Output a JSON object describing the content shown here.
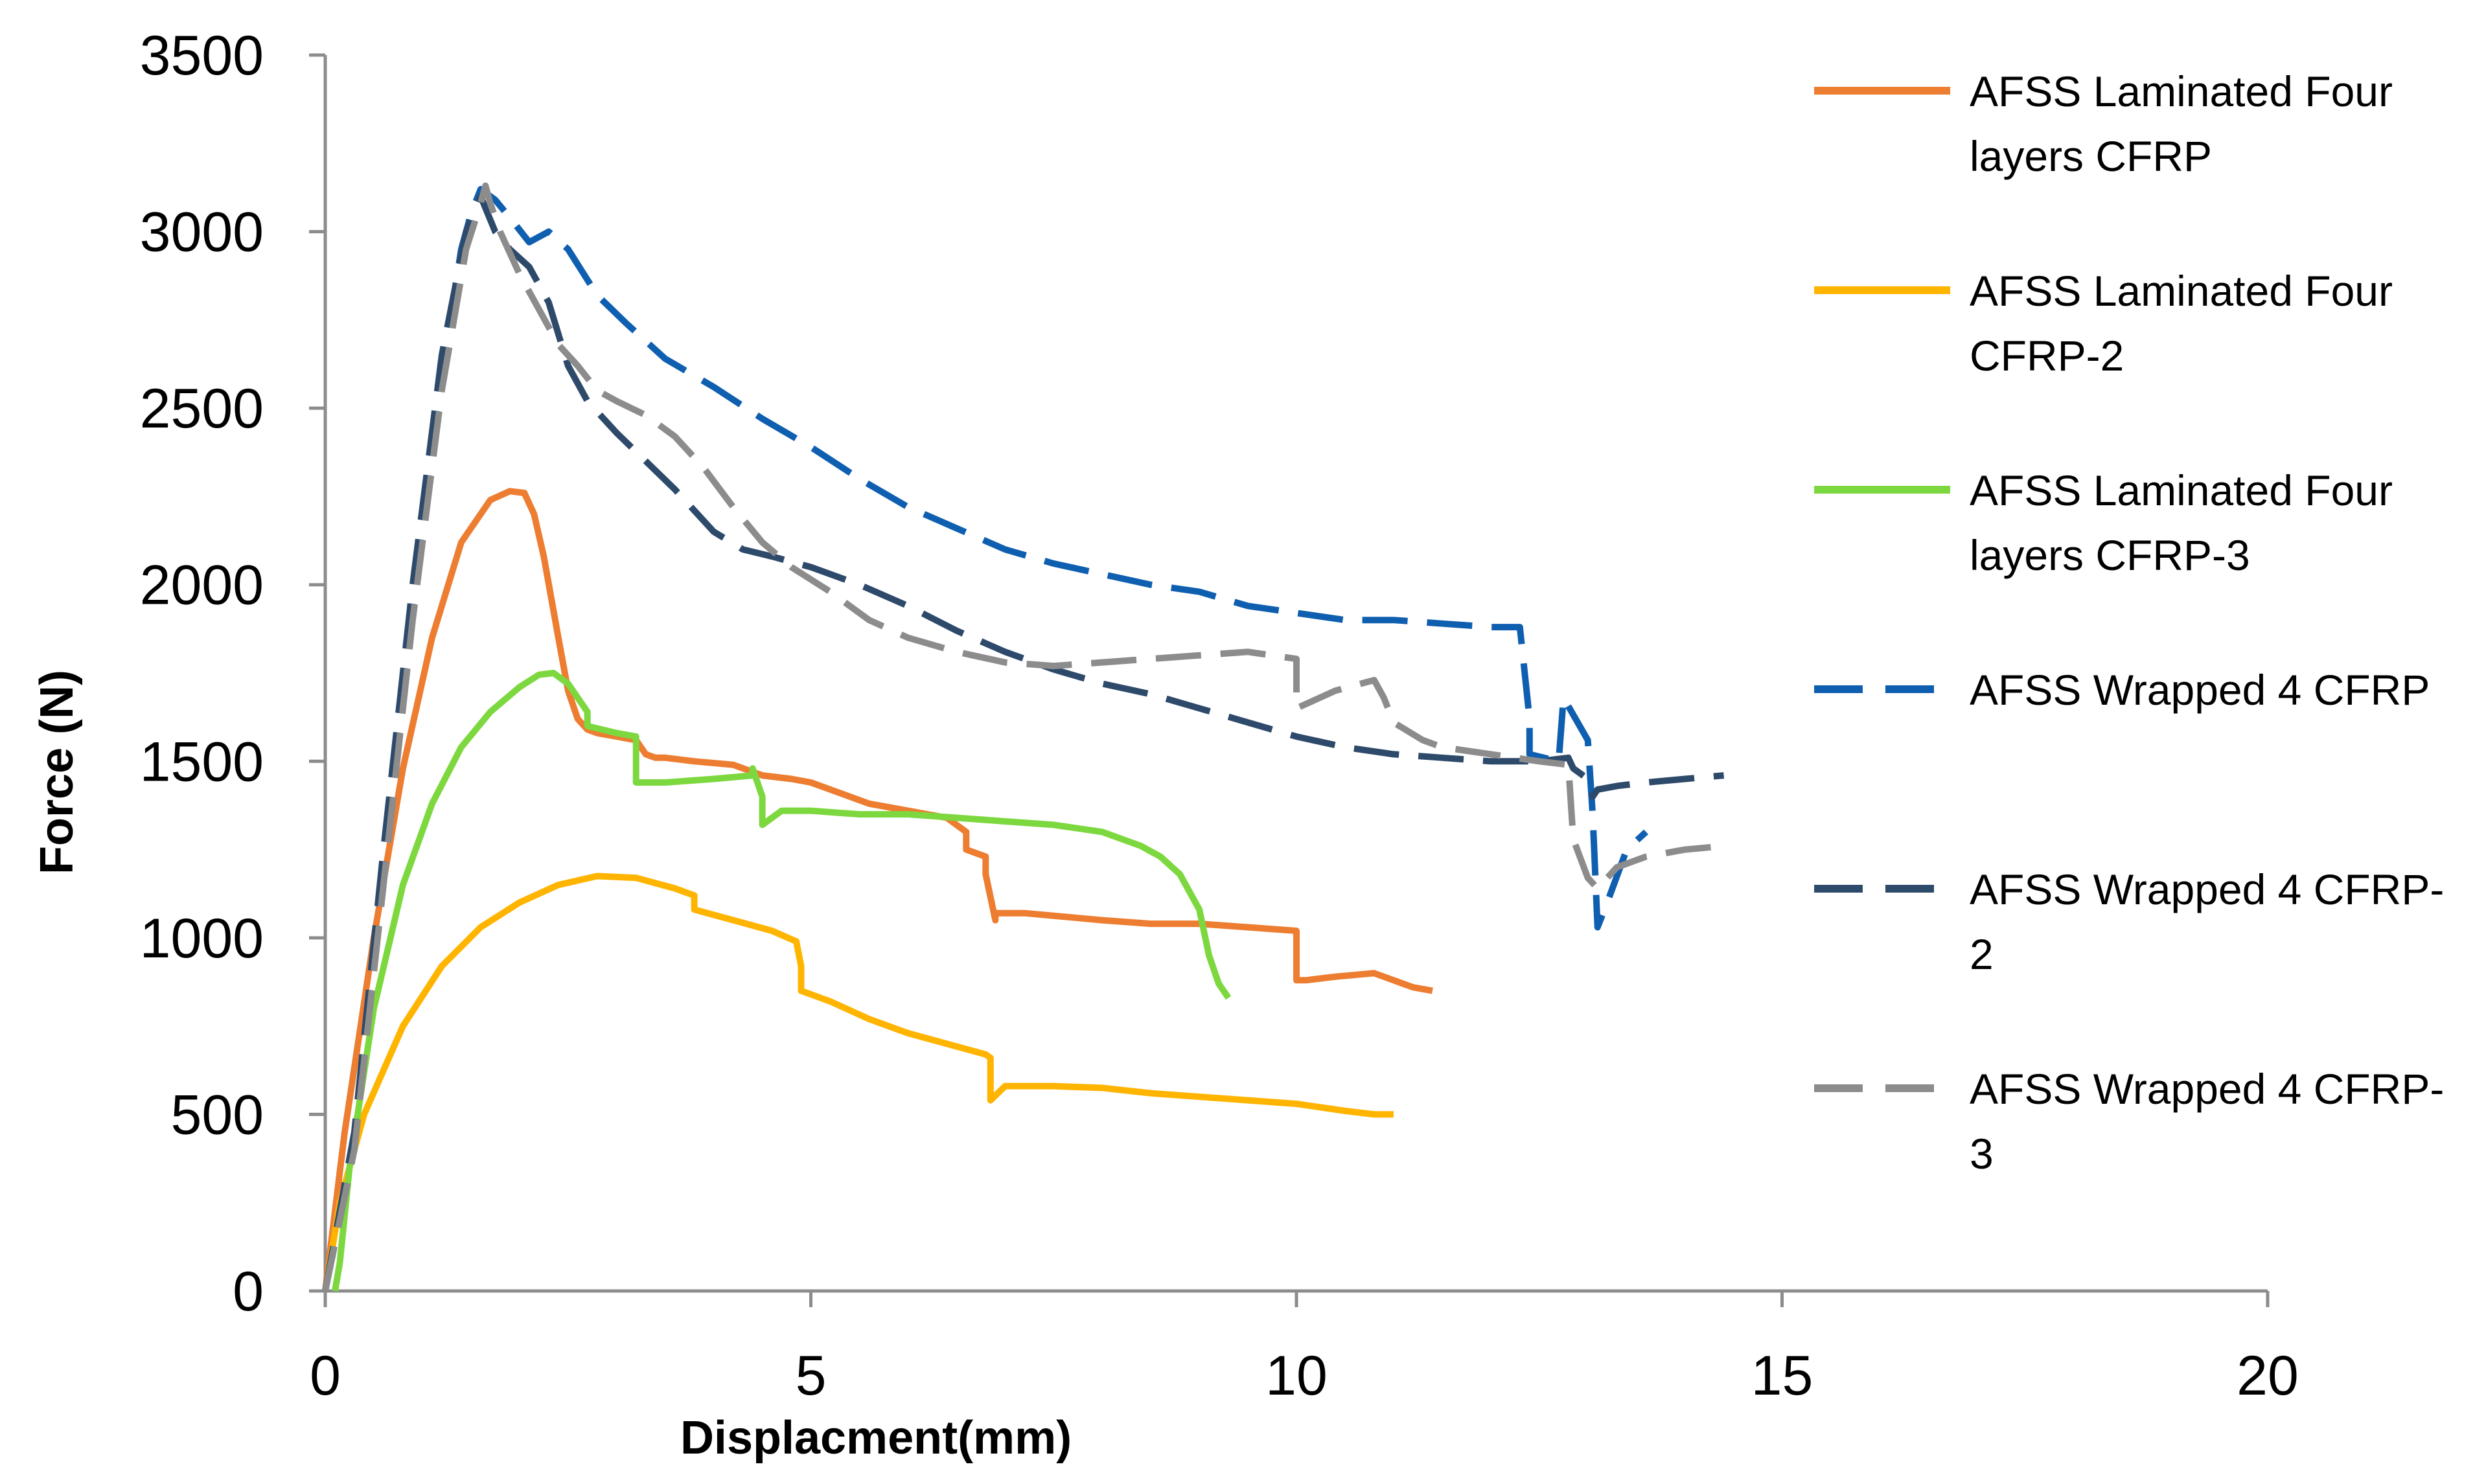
{
  "chart_data": {
    "type": "line",
    "title": "",
    "xlabel": "Displacment(mm)",
    "ylabel": "Force (N)",
    "xlim": [
      0,
      20
    ],
    "ylim": [
      0,
      3500
    ],
    "xticks": [
      0,
      5,
      10,
      15,
      20
    ],
    "yticks": [
      0,
      500,
      1000,
      1500,
      2000,
      2500,
      3000,
      3500
    ],
    "grid": false,
    "legend_position": "right",
    "series": [
      {
        "name": "AFSS Laminated Four layers CFRP",
        "legend_lines": [
          "AFSS Laminated Four",
          "layers CFRP"
        ],
        "color": "#ED7D31",
        "dash": "solid",
        "x": [
          0,
          0.2,
          0.5,
          0.8,
          1.1,
          1.4,
          1.7,
          1.9,
          2.05,
          2.15,
          2.25,
          2.4,
          2.5,
          2.6,
          2.7,
          2.8,
          3.0,
          3.2,
          3.3,
          3.4,
          3.5,
          3.8,
          4.2,
          4.5,
          4.8,
          5.0,
          5.3,
          5.6,
          6.0,
          6.4,
          6.6,
          6.6,
          6.8,
          6.8,
          6.9,
          6.9,
          7.2,
          7.6,
          8.0,
          8.5,
          9.0,
          9.5,
          10.0,
          10.0,
          10.1,
          10.4,
          10.8,
          11.0,
          11.2,
          11.4
        ],
        "y": [
          0,
          450,
          1000,
          1480,
          1850,
          2120,
          2240,
          2265,
          2260,
          2200,
          2080,
          1850,
          1700,
          1620,
          1590,
          1580,
          1570,
          1560,
          1520,
          1510,
          1510,
          1500,
          1490,
          1460,
          1450,
          1440,
          1410,
          1380,
          1360,
          1340,
          1300,
          1250,
          1230,
          1180,
          1050,
          1070,
          1070,
          1060,
          1050,
          1040,
          1040,
          1030,
          1020,
          880,
          880,
          890,
          900,
          880,
          860,
          850
        ]
      },
      {
        "name": "AFSS Laminated Four CFRP-2",
        "legend_lines": [
          "AFSS Laminated Four",
          "CFRP-2"
        ],
        "color": "#FFB400",
        "dash": "solid",
        "x": [
          0,
          0.15,
          0.4,
          0.8,
          1.2,
          1.6,
          2.0,
          2.4,
          2.8,
          3.2,
          3.6,
          3.8,
          3.8,
          4.2,
          4.6,
          4.85,
          4.9,
          4.9,
          5.2,
          5.6,
          6.0,
          6.4,
          6.8,
          6.85,
          6.85,
          7.0,
          7.5,
          8.0,
          8.5,
          9.0,
          9.5,
          10.0,
          10.5,
          10.8,
          11.0
        ],
        "y": [
          0,
          250,
          500,
          750,
          920,
          1030,
          1100,
          1150,
          1175,
          1170,
          1140,
          1120,
          1080,
          1050,
          1020,
          990,
          920,
          850,
          820,
          770,
          730,
          700,
          670,
          660,
          540,
          580,
          580,
          575,
          560,
          550,
          540,
          530,
          510,
          500,
          500
        ]
      },
      {
        "name": "AFSS Laminated Four layers CFRP-3",
        "legend_lines": [
          "AFSS Laminated Four",
          "layers CFRP-3"
        ],
        "color": "#7DD83F",
        "dash": "solid",
        "x": [
          0.1,
          0.15,
          0.25,
          0.5,
          0.8,
          1.1,
          1.4,
          1.7,
          2.0,
          2.2,
          2.35,
          2.5,
          2.6,
          2.7,
          2.7,
          3.0,
          3.2,
          3.2,
          3.5,
          4.0,
          4.4,
          4.4,
          4.5,
          4.5,
          4.7,
          5.0,
          5.5,
          6.0,
          6.5,
          7.0,
          7.5,
          8.0,
          8.4,
          8.6,
          8.8,
          9.0,
          9.1,
          9.2,
          9.3
        ],
        "y": [
          0,
          80,
          350,
          800,
          1150,
          1380,
          1540,
          1640,
          1710,
          1745,
          1750,
          1720,
          1680,
          1640,
          1600,
          1580,
          1570,
          1440,
          1440,
          1450,
          1460,
          1480,
          1400,
          1320,
          1360,
          1360,
          1350,
          1350,
          1340,
          1330,
          1320,
          1300,
          1260,
          1230,
          1180,
          1080,
          950,
          870,
          830
        ]
      },
      {
        "name": "AFSS Wrapped 4 CFRP",
        "legend_lines": [
          "AFSS Wrapped 4 CFRP"
        ],
        "color": "#0F5FB0",
        "dash": "dashed",
        "x": [
          0,
          0.3,
          0.6,
          0.9,
          1.2,
          1.4,
          1.5,
          1.6,
          1.75,
          1.9,
          2.1,
          2.3,
          2.5,
          2.8,
          3.1,
          3.5,
          4.0,
          4.5,
          5.0,
          5.5,
          6.0,
          6.5,
          7.0,
          7.5,
          8.0,
          8.5,
          9.0,
          9.5,
          10.0,
          10.5,
          11.0,
          11.5,
          12.0,
          12.3,
          12.4,
          12.4,
          12.7,
          12.75,
          12.75,
          13.0,
          13.05,
          13.1,
          13.2,
          13.4,
          13.6
        ],
        "y": [
          0,
          450,
          1200,
          1950,
          2600,
          2950,
          3050,
          3120,
          3090,
          3040,
          2970,
          3000,
          2950,
          2820,
          2740,
          2640,
          2560,
          2470,
          2390,
          2300,
          2220,
          2160,
          2100,
          2060,
          2030,
          2000,
          1980,
          1940,
          1920,
          1900,
          1900,
          1890,
          1880,
          1880,
          1620,
          1520,
          1500,
          1680,
          1680,
          1560,
          1350,
          1030,
          1100,
          1250,
          1300
        ]
      },
      {
        "name": "AFSS Wrapped 4 CFRP-2",
        "legend_lines": [
          "AFSS Wrapped 4 CFRP-",
          "2"
        ],
        "color": "#2E4A6B",
        "dash": "dashed",
        "x": [
          0,
          0.3,
          0.6,
          0.9,
          1.2,
          1.45,
          1.6,
          1.75,
          1.9,
          2.1,
          2.3,
          2.5,
          2.7,
          3.0,
          3.3,
          3.6,
          4.0,
          4.3,
          4.6,
          5.0,
          5.5,
          6.0,
          6.5,
          7.0,
          7.5,
          8.0,
          8.5,
          9.0,
          9.5,
          10.0,
          10.5,
          11.0,
          11.5,
          12.0,
          12.5,
          12.8,
          12.85,
          13.0,
          13.05,
          13.1,
          13.3,
          13.6,
          14.0,
          14.4
        ],
        "y": [
          0,
          450,
          1250,
          2000,
          2650,
          3000,
          3100,
          3000,
          2950,
          2900,
          2800,
          2620,
          2520,
          2430,
          2350,
          2270,
          2150,
          2100,
          2080,
          2050,
          2000,
          1940,
          1870,
          1810,
          1760,
          1720,
          1690,
          1650,
          1610,
          1570,
          1540,
          1520,
          1510,
          1500,
          1500,
          1510,
          1480,
          1450,
          1400,
          1420,
          1430,
          1440,
          1450,
          1460
        ]
      },
      {
        "name": "AFSS Wrapped 4 CFRP-3",
        "legend_lines": [
          "AFSS Wrapped 4 CFRP-",
          "3"
        ],
        "color": "#8C8C8C",
        "dash": "dashed",
        "x": [
          0,
          0.3,
          0.6,
          0.9,
          1.2,
          1.45,
          1.6,
          1.65,
          1.7,
          1.8,
          2.0,
          2.2,
          2.4,
          2.6,
          2.8,
          3.0,
          3.3,
          3.6,
          3.9,
          4.2,
          4.5,
          4.8,
          5.2,
          5.6,
          6.0,
          6.5,
          7.0,
          7.5,
          8.0,
          8.5,
          9.0,
          9.5,
          10.0,
          10.0,
          10.4,
          10.8,
          10.9,
          11.0,
          11.3,
          11.5,
          12.0,
          12.5,
          12.8,
          12.85,
          13.0,
          13.1,
          13.3,
          13.6,
          14.0,
          14.4
        ],
        "y": [
          0,
          400,
          1150,
          1900,
          2550,
          2950,
          3080,
          3130,
          3080,
          3000,
          2880,
          2780,
          2680,
          2620,
          2550,
          2520,
          2480,
          2420,
          2330,
          2220,
          2120,
          2050,
          1980,
          1900,
          1850,
          1810,
          1780,
          1770,
          1780,
          1790,
          1800,
          1810,
          1790,
          1650,
          1700,
          1730,
          1680,
          1610,
          1560,
          1540,
          1520,
          1500,
          1490,
          1280,
          1170,
          1140,
          1200,
          1230,
          1250,
          1260
        ]
      }
    ]
  }
}
